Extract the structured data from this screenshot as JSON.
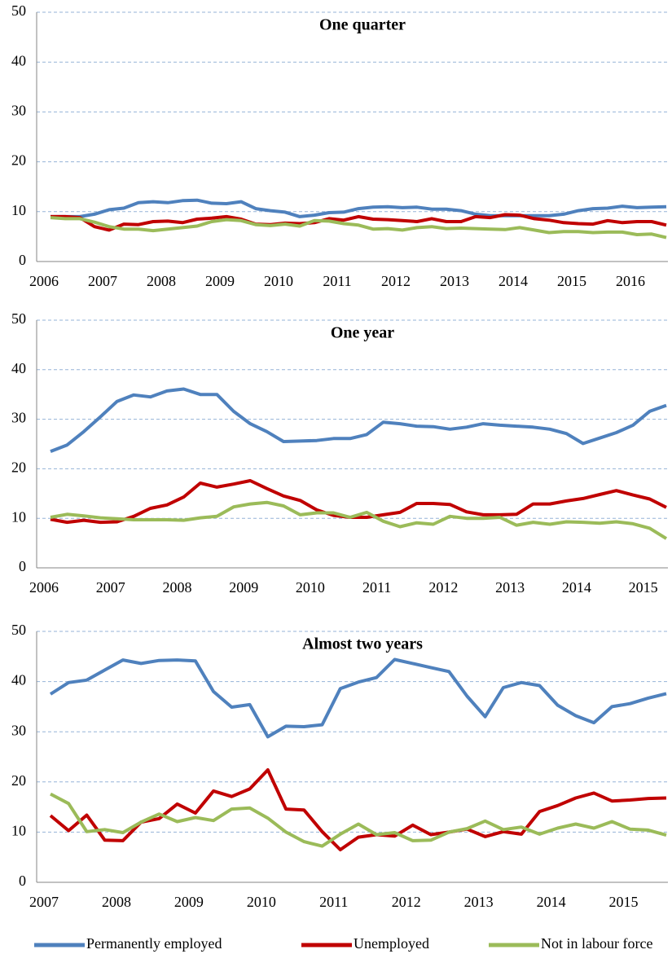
{
  "chart_data": [
    {
      "type": "line",
      "title": "One quarter",
      "categories": [
        "2006",
        null,
        null,
        null,
        "2007",
        null,
        null,
        null,
        "2008",
        null,
        null,
        null,
        "2009",
        null,
        null,
        null,
        "2010",
        null,
        null,
        null,
        "2011",
        null,
        null,
        null,
        "2012",
        null,
        null,
        null,
        "2013",
        null,
        null,
        null,
        "2014",
        null,
        null,
        null,
        "2015",
        null,
        null,
        null,
        "2016",
        null,
        null
      ],
      "series": [
        {
          "color": "#4f81bd",
          "values": [
            9.0,
            9.0,
            9.0,
            9.5,
            10.4,
            10.7,
            11.8,
            12.0,
            11.8,
            12.2,
            12.3,
            11.7,
            11.6,
            12.0,
            10.6,
            10.2,
            9.9,
            9.0,
            9.3,
            9.8,
            9.9,
            10.6,
            10.9,
            11.0,
            10.8,
            10.9,
            10.5,
            10.5,
            10.2,
            9.5,
            9.2,
            9.2,
            9.2,
            9.2,
            9.2,
            9.5,
            10.2,
            10.6,
            10.7,
            11.1,
            10.8,
            10.9,
            11.0
          ]
        },
        {
          "color": "#c00000",
          "values": [
            9.0,
            9.0,
            8.8,
            7.0,
            6.3,
            7.5,
            7.4,
            8.0,
            8.1,
            7.8,
            8.5,
            8.7,
            9.0,
            8.5,
            7.5,
            7.4,
            7.7,
            7.6,
            7.8,
            8.6,
            8.3,
            9.0,
            8.5,
            8.4,
            8.2,
            8.0,
            8.6,
            8.0,
            8.0,
            9.0,
            8.8,
            9.4,
            9.3,
            8.6,
            8.3,
            7.8,
            7.6,
            7.5,
            8.2,
            7.8,
            8.0,
            8.0,
            7.3
          ]
        },
        {
          "color": "#9bbb59",
          "values": [
            8.8,
            8.6,
            8.6,
            7.9,
            7.0,
            6.5,
            6.5,
            6.2,
            6.5,
            6.8,
            7.1,
            8.0,
            8.4,
            8.2,
            7.4,
            7.2,
            7.5,
            7.1,
            8.2,
            8.1,
            7.6,
            7.3,
            6.5,
            6.6,
            6.3,
            6.8,
            7.0,
            6.6,
            6.7,
            6.6,
            6.5,
            6.4,
            6.8,
            6.3,
            5.8,
            6.0,
            6.0,
            5.8,
            5.9,
            5.9,
            5.4,
            5.5,
            4.8
          ]
        }
      ],
      "ylim": [
        0,
        50
      ],
      "yticks": [
        0,
        10,
        20,
        30,
        40,
        50
      ],
      "grid": true
    },
    {
      "type": "line",
      "title": "One year",
      "categories": [
        "2006",
        null,
        null,
        null,
        "2007",
        null,
        null,
        null,
        "2008",
        null,
        null,
        null,
        "2009",
        null,
        null,
        null,
        "2010",
        null,
        null,
        null,
        "2011",
        null,
        null,
        null,
        "2012",
        null,
        null,
        null,
        "2013",
        null,
        null,
        null,
        "2014",
        null,
        null,
        null,
        "2015",
        null
      ],
      "series": [
        {
          "color": "#4f81bd",
          "values": [
            23.5,
            24.8,
            27.5,
            30.5,
            33.6,
            34.9,
            34.5,
            35.7,
            36.1,
            35.0,
            35.0,
            31.6,
            29.1,
            27.5,
            25.5,
            25.6,
            25.7,
            26.1,
            26.1,
            26.9,
            29.4,
            29.1,
            28.6,
            28.5,
            28.0,
            28.4,
            29.1,
            28.8,
            28.6,
            28.4,
            28.0,
            27.1,
            25.1,
            26.2,
            27.3,
            28.8,
            31.6,
            32.8
          ]
        },
        {
          "color": "#c00000",
          "values": [
            9.8,
            9.2,
            9.6,
            9.2,
            9.3,
            10.4,
            12.0,
            12.7,
            14.3,
            17.1,
            16.3,
            16.9,
            17.6,
            16.0,
            14.5,
            13.6,
            11.7,
            10.6,
            10.2,
            10.2,
            10.7,
            11.2,
            13.0,
            13.0,
            12.8,
            11.3,
            10.7,
            10.7,
            10.8,
            12.9,
            12.9,
            13.5,
            14.0,
            14.8,
            15.6,
            14.7,
            13.9,
            12.2
          ]
        },
        {
          "color": "#9bbb59",
          "values": [
            10.2,
            10.8,
            10.5,
            10.1,
            9.9,
            9.7,
            9.7,
            9.7,
            9.6,
            10.1,
            10.4,
            12.3,
            12.9,
            13.2,
            12.5,
            10.7,
            11.1,
            11.1,
            10.2,
            11.2,
            9.4,
            8.3,
            9.1,
            8.8,
            10.4,
            10.0,
            10.0,
            10.2,
            8.6,
            9.2,
            8.8,
            9.3,
            9.2,
            9.0,
            9.3,
            8.9,
            8.0,
            5.9
          ]
        }
      ],
      "ylim": [
        0,
        50
      ],
      "yticks": [
        0,
        10,
        20,
        30,
        40,
        50
      ],
      "grid": true
    },
    {
      "type": "line",
      "title": "Almost two years",
      "categories": [
        "2007",
        null,
        null,
        null,
        "2008",
        null,
        null,
        null,
        "2009",
        null,
        null,
        null,
        "2010",
        null,
        null,
        null,
        "2011",
        null,
        null,
        null,
        "2012",
        null,
        null,
        null,
        "2013",
        null,
        null,
        null,
        "2014",
        null,
        null,
        null,
        "2015",
        null,
        null
      ],
      "series": [
        {
          "name": "Permanently employed",
          "color": "#4f81bd",
          "values": [
            37.5,
            39.8,
            40.3,
            42.3,
            44.3,
            43.6,
            44.2,
            44.3,
            44.1,
            38.0,
            34.9,
            35.4,
            29.0,
            31.1,
            31.0,
            31.4,
            38.6,
            39.9,
            40.8,
            44.4,
            43.6,
            42.8,
            42.0,
            37.1,
            33.0,
            38.8,
            39.8,
            39.2,
            35.3,
            33.2,
            31.8,
            35.0,
            35.6,
            36.7,
            37.6
          ]
        },
        {
          "name": "Unemployed",
          "color": "#c00000",
          "values": [
            13.3,
            10.3,
            13.4,
            8.4,
            8.3,
            12.0,
            12.7,
            15.6,
            13.8,
            18.2,
            17.1,
            18.6,
            22.4,
            14.6,
            14.4,
            10.1,
            6.5,
            9.0,
            9.5,
            9.2,
            11.4,
            9.5,
            10.0,
            10.6,
            9.1,
            10.1,
            9.6,
            14.1,
            15.3,
            16.8,
            17.8,
            16.2,
            16.4,
            16.7,
            16.8
          ]
        },
        {
          "name": "Not in labour force",
          "color": "#9bbb59",
          "values": [
            17.6,
            15.7,
            10.1,
            10.5,
            9.9,
            12.0,
            13.6,
            12.1,
            12.9,
            12.3,
            14.6,
            14.8,
            12.8,
            10.0,
            8.1,
            7.2,
            9.6,
            11.6,
            9.5,
            9.9,
            8.3,
            8.4,
            10.0,
            10.7,
            12.2,
            10.5,
            11.0,
            9.6,
            10.8,
            11.6,
            10.8,
            12.1,
            10.6,
            10.4,
            9.4
          ]
        }
      ],
      "ylim": [
        0,
        50
      ],
      "yticks": [
        0,
        10,
        20,
        30,
        40,
        50
      ],
      "grid": true,
      "legend": "bottom"
    }
  ]
}
